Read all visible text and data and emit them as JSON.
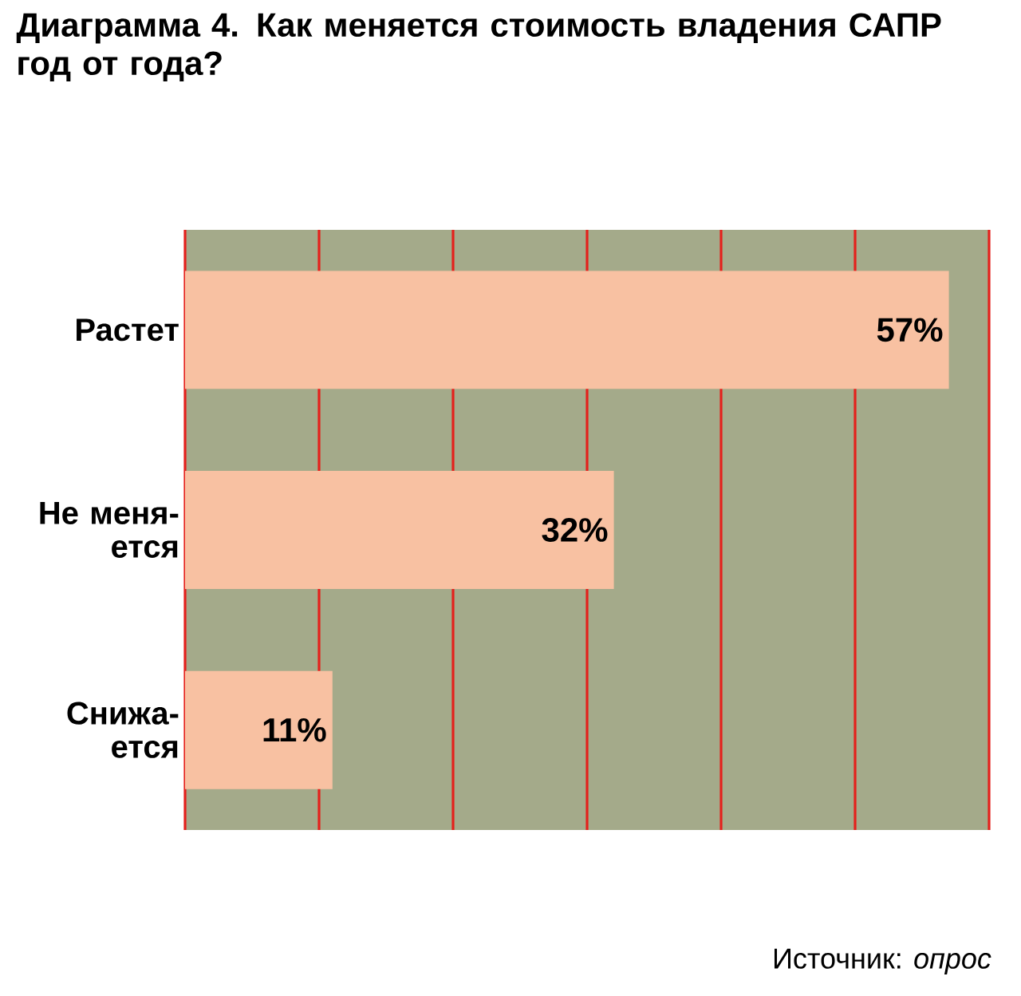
{
  "chart_data": {
    "type": "bar",
    "orientation": "horizontal",
    "title": "Диаграмма 4. Как меняется стоимость владения САПР год от года?",
    "categories": [
      "Растет",
      "Не меня-ется",
      "Снижа-ется"
    ],
    "values": [
      57,
      32,
      11
    ],
    "value_labels": [
      "57%",
      "32%",
      "11%"
    ],
    "color": "#f8c1a2",
    "xlim": [
      0,
      60
    ],
    "xticks": [
      {
        "value": 0,
        "label": null
      },
      {
        "value": 10,
        "label": null
      },
      {
        "value": 20,
        "label": null
      },
      {
        "value": 30,
        "label": null
      },
      {
        "value": 40,
        "label": null
      },
      {
        "value": 50,
        "label": null
      },
      {
        "value": 60,
        "label": null
      }
    ],
    "grid": "x",
    "tick_labels": "y",
    "annotations": [
      "Источник: *опрос*"
    ]
  }
}
